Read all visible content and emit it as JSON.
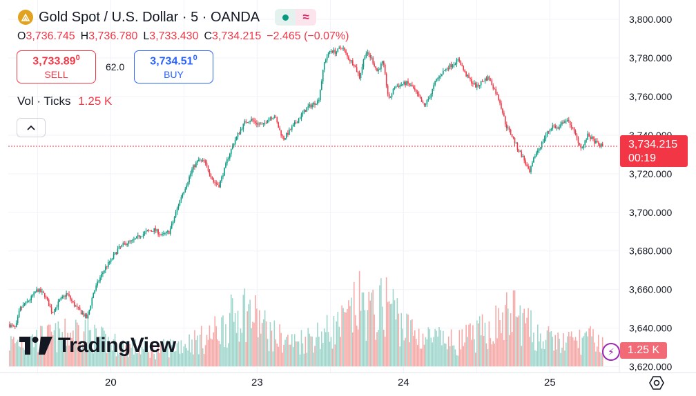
{
  "header": {
    "title": "Gold Spot / U.S. Dollar · 5 · OANDA",
    "ohlc": {
      "o_label": "O",
      "o_value": "3,736.745",
      "h_label": "H",
      "h_value": "3,736.780",
      "l_label": "L",
      "l_value": "3,733.430",
      "c_label": "C",
      "c_value": "3,734.215",
      "change": "−2.465 (−0.07%)"
    }
  },
  "trade": {
    "sell_price": "3,733.89",
    "sell_price_sup": "0",
    "sell_label": "SELL",
    "spread": "62.0",
    "buy_price": "3,734.51",
    "buy_price_sup": "0",
    "buy_label": "BUY"
  },
  "volume_indicator": {
    "label": "Vol · Ticks",
    "value": "1.25 K"
  },
  "price_tag": {
    "price": "3,734.215",
    "countdown": "00:19"
  },
  "volume_tag": "1.25 K",
  "branding": "TradingView",
  "colors": {
    "up": "#089981",
    "down": "#f23645",
    "vol_up": "#9fd6cc",
    "vol_down": "#f7a9a7",
    "grid": "#f0f3fa"
  },
  "icons": {
    "symbol": "gold-coin-icon",
    "live": "live-status-dot-icon",
    "wave": "wave-icon",
    "collapse": "chevron-up-icon",
    "lightning": "lightning-icon",
    "settings": "settings-hexagon-icon"
  },
  "chart_data": {
    "type": "candlestick",
    "title": "Gold Spot / U.S. Dollar · 5 · OANDA",
    "interval": "5 minutes",
    "y_ticks": [
      "3,620.000",
      "3,640.000",
      "3,660.000",
      "3,680.000",
      "3,700.000",
      "3,720.000",
      "3,740.000",
      "3,760.000",
      "3,780.000",
      "3,800.000"
    ],
    "y_tick_values": [
      3620,
      3640,
      3660,
      3680,
      3700,
      3720,
      3740,
      3760,
      3780,
      3800
    ],
    "ylim": [
      3617,
      3810
    ],
    "x_ticks": [
      "20",
      "23",
      "24",
      "25"
    ],
    "x_tick_positions": [
      0.2,
      1.2,
      2.2,
      3.2
    ],
    "xlim": [
      -0.5,
      3.67
    ],
    "last_price": 3734.215,
    "price_path": [
      [
        -0.5,
        3642
      ],
      [
        -0.45,
        3640
      ],
      [
        -0.42,
        3650
      ],
      [
        -0.35,
        3655
      ],
      [
        -0.3,
        3660
      ],
      [
        -0.25,
        3657
      ],
      [
        -0.2,
        3648
      ],
      [
        -0.15,
        3654
      ],
      [
        -0.1,
        3658
      ],
      [
        -0.05,
        3652
      ],
      [
        0.0,
        3648
      ],
      [
        0.04,
        3645
      ],
      [
        0.08,
        3658
      ],
      [
        0.12,
        3665
      ],
      [
        0.16,
        3671
      ],
      [
        0.2,
        3675
      ],
      [
        0.25,
        3681
      ],
      [
        0.3,
        3684
      ],
      [
        0.35,
        3685
      ],
      [
        0.4,
        3688
      ],
      [
        0.45,
        3690
      ],
      [
        0.5,
        3691
      ],
      [
        0.55,
        3688
      ],
      [
        0.6,
        3690
      ],
      [
        0.62,
        3694
      ],
      [
        0.68,
        3708
      ],
      [
        0.72,
        3715
      ],
      [
        0.76,
        3723
      ],
      [
        0.8,
        3727
      ],
      [
        0.84,
        3726
      ],
      [
        0.88,
        3720
      ],
      [
        0.9,
        3716
      ],
      [
        0.94,
        3714
      ],
      [
        0.98,
        3723
      ],
      [
        1.0,
        3728
      ],
      [
        1.04,
        3736
      ],
      [
        1.08,
        3742
      ],
      [
        1.12,
        3747
      ],
      [
        1.16,
        3748
      ],
      [
        1.2,
        3746
      ],
      [
        1.24,
        3745
      ],
      [
        1.28,
        3749
      ],
      [
        1.32,
        3750
      ],
      [
        1.35,
        3743
      ],
      [
        1.38,
        3738
      ],
      [
        1.42,
        3742
      ],
      [
        1.46,
        3746
      ],
      [
        1.5,
        3750
      ],
      [
        1.54,
        3754
      ],
      [
        1.58,
        3756
      ],
      [
        1.62,
        3758
      ],
      [
        1.66,
        3778
      ],
      [
        1.7,
        3784
      ],
      [
        1.74,
        3783
      ],
      [
        1.78,
        3786
      ],
      [
        1.82,
        3780
      ],
      [
        1.86,
        3777
      ],
      [
        1.9,
        3770
      ],
      [
        1.94,
        3783
      ],
      [
        1.98,
        3780
      ],
      [
        2.02,
        3773
      ],
      [
        2.06,
        3778
      ],
      [
        2.1,
        3758
      ],
      [
        2.14,
        3765
      ],
      [
        2.18,
        3766
      ],
      [
        2.22,
        3767
      ],
      [
        2.26,
        3765
      ],
      [
        2.3,
        3760
      ],
      [
        2.34,
        3755
      ],
      [
        2.38,
        3760
      ],
      [
        2.42,
        3768
      ],
      [
        2.46,
        3772
      ],
      [
        2.5,
        3775
      ],
      [
        2.54,
        3777
      ],
      [
        2.58,
        3779
      ],
      [
        2.62,
        3772
      ],
      [
        2.66,
        3768
      ],
      [
        2.7,
        3765
      ],
      [
        2.74,
        3768
      ],
      [
        2.78,
        3770
      ],
      [
        2.82,
        3764
      ],
      [
        2.86,
        3757
      ],
      [
        2.9,
        3745
      ],
      [
        2.94,
        3740
      ],
      [
        2.98,
        3733
      ],
      [
        3.02,
        3728
      ],
      [
        3.06,
        3720
      ],
      [
        3.1,
        3730
      ],
      [
        3.14,
        3735
      ],
      [
        3.18,
        3741
      ],
      [
        3.22,
        3745
      ],
      [
        3.26,
        3743
      ],
      [
        3.3,
        3748
      ],
      [
        3.34,
        3746
      ],
      [
        3.38,
        3739
      ],
      [
        3.42,
        3733
      ],
      [
        3.46,
        3740
      ],
      [
        3.5,
        3737
      ],
      [
        3.53,
        3735
      ],
      [
        3.56,
        3734.2
      ]
    ],
    "volume_scale_ticks": "1.25 K",
    "volume_profile": [
      [
        -0.5,
        0.3
      ],
      [
        -0.3,
        0.35
      ],
      [
        -0.1,
        0.4
      ],
      [
        0.0,
        0.5
      ],
      [
        0.1,
        0.35
      ],
      [
        0.3,
        0.25
      ],
      [
        0.5,
        0.2
      ],
      [
        0.7,
        0.3
      ],
      [
        0.85,
        0.35
      ],
      [
        1.0,
        0.55
      ],
      [
        1.1,
        0.75
      ],
      [
        1.2,
        0.6
      ],
      [
        1.3,
        0.4
      ],
      [
        1.45,
        0.3
      ],
      [
        1.6,
        0.4
      ],
      [
        1.7,
        0.45
      ],
      [
        1.8,
        0.55
      ],
      [
        1.9,
        0.8
      ],
      [
        2.0,
        0.65
      ],
      [
        2.05,
        0.75
      ],
      [
        2.1,
        0.85
      ],
      [
        2.2,
        0.5
      ],
      [
        2.3,
        0.4
      ],
      [
        2.4,
        0.35
      ],
      [
        2.55,
        0.3
      ],
      [
        2.7,
        0.4
      ],
      [
        2.85,
        0.55
      ],
      [
        2.95,
        0.7
      ],
      [
        3.05,
        0.5
      ],
      [
        3.15,
        0.35
      ],
      [
        3.3,
        0.3
      ],
      [
        3.45,
        0.35
      ],
      [
        3.56,
        0.3
      ]
    ]
  }
}
